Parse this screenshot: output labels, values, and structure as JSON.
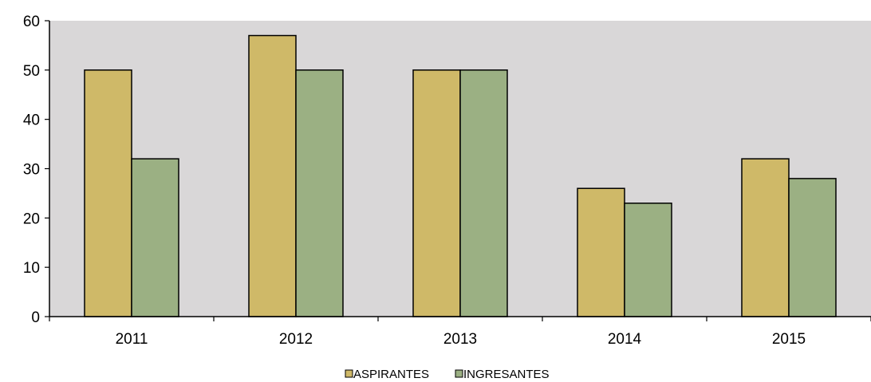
{
  "chart_data": {
    "type": "bar",
    "categories": [
      "2011",
      "2012",
      "2013",
      "2014",
      "2015"
    ],
    "series": [
      {
        "name": "ASPIRANTES",
        "values": [
          50,
          57,
          50,
          26,
          32
        ],
        "color": "#CFB968"
      },
      {
        "name": "INGRESANTES",
        "values": [
          32,
          50,
          50,
          23,
          28
        ],
        "color": "#9BB083"
      }
    ],
    "ylim": [
      0,
      60
    ],
    "yticks": [
      "0",
      "10",
      "20",
      "30",
      "40",
      "50",
      "60"
    ],
    "grid": false,
    "plot_background": "#D9D7D8",
    "legend_position": "bottom"
  }
}
